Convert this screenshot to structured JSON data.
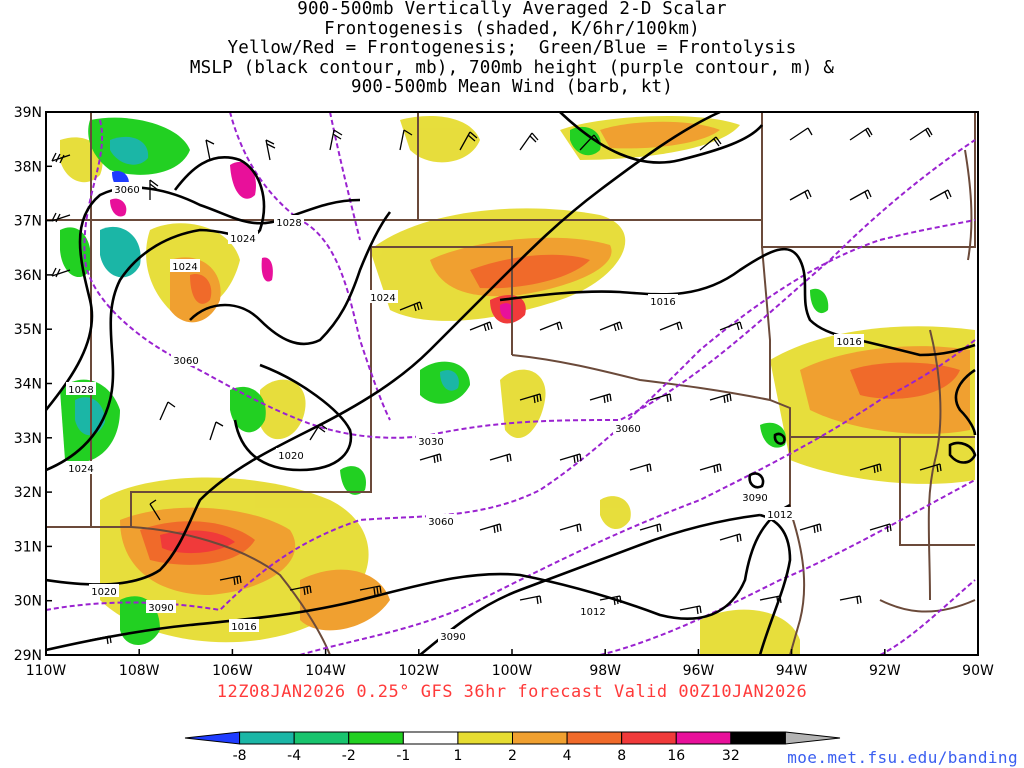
{
  "title_lines": [
    "900-500mb Vertically Averaged 2-D Scalar",
    "Frontogenesis (shaded, K/6hr/100km)",
    "Yellow/Red = Frontogenesis;  Green/Blue = Frontolysis",
    "MSLP (black contour, mb), 700mb height (purple contour, m) &",
    "900-500mb Mean Wind (barb, kt)"
  ],
  "axes": {
    "lat_labels": [
      "39N",
      "38N",
      "37N",
      "36N",
      "35N",
      "34N",
      "33N",
      "32N",
      "31N",
      "30N",
      "29N"
    ],
    "lon_labels": [
      "110W",
      "108W",
      "106W",
      "104W",
      "102W",
      "100W",
      "98W",
      "96W",
      "94W",
      "92W",
      "90W"
    ]
  },
  "contour_labels": {
    "mslp": [
      "1028",
      "1024",
      "1024",
      "1024",
      "1028",
      "1024",
      "1020",
      "1020",
      "1016",
      "1016",
      "1016",
      "1012",
      "1012"
    ],
    "height700": [
      "3060",
      "3060",
      "3030",
      "3060",
      "3060",
      "3090",
      "3090",
      "3090"
    ]
  },
  "caption": "12Z08JAN2026 0.25° GFS 36hr forecast Valid 00Z10JAN2026",
  "colorbar": {
    "labels": [
      "-8",
      "-4",
      "-2",
      "-1",
      "1",
      "2",
      "4",
      "8",
      "16",
      "32"
    ],
    "colors": [
      "#1f3cff",
      "#1bb6a6",
      "#19c46e",
      "#22d022",
      "#ffffff",
      "#e6dc32",
      "#f0a030",
      "#f06a2a",
      "#f03a3a",
      "#e8109a",
      "#000000",
      "#b4b4b4"
    ]
  },
  "credit": "moe.met.fsu.edu/banding"
}
